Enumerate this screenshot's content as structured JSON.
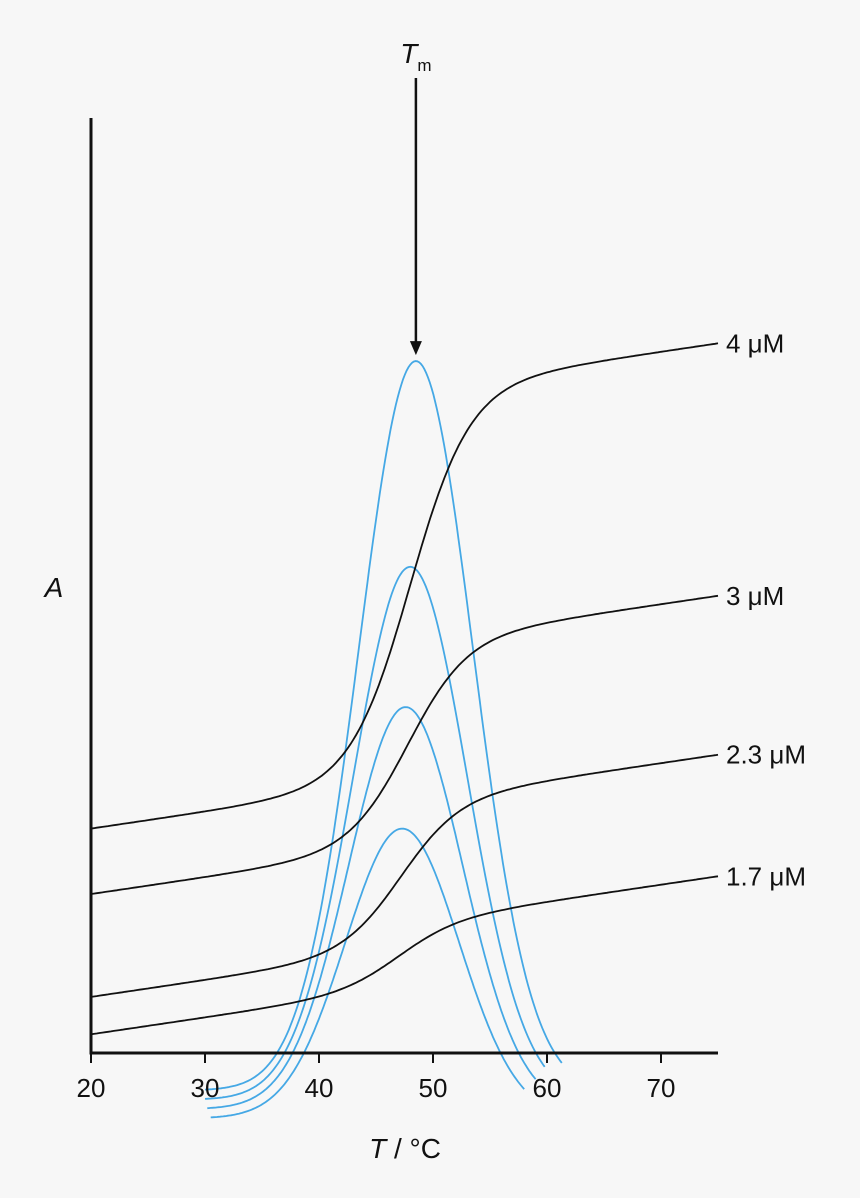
{
  "chart_data": {
    "type": "line",
    "title": "",
    "xlabel_var": "T",
    "xlabel_unit": " / °C",
    "ylabel": "A",
    "xlim": [
      20,
      75
    ],
    "xticks": [
      "20",
      "30",
      "40",
      "50",
      "60",
      "70"
    ],
    "peak_marker": {
      "symbol": "T",
      "subscript": "m",
      "x": 48.5
    },
    "colors": {
      "melting_curve": "#111111",
      "derivative_curve": "#45a8e5",
      "axis": "#111111"
    },
    "melting_curves": [
      {
        "name": "4 μM",
        "x_start": 20,
        "x_end": 75,
        "midpoint": 48.0,
        "y_low": 0.24,
        "y_high": 0.66
      },
      {
        "name": "3 μM",
        "x_start": 20,
        "x_end": 75,
        "midpoint": 47.8,
        "y_low": 0.17,
        "y_high": 0.39
      },
      {
        "name": "2.3 μM",
        "x_start": 20,
        "x_end": 75,
        "midpoint": 47.2,
        "y_low": 0.06,
        "y_high": 0.22
      },
      {
        "name": "1.7 μM",
        "x_start": 20,
        "x_end": 75,
        "midpoint": 47.0,
        "y_low": 0.02,
        "y_high": 0.09
      }
    ],
    "derivative_curves": [
      {
        "peak_x": 48.5,
        "x_start": 30.0,
        "x_end": 61.3,
        "y_base": -0.04,
        "y_peak": 0.74
      },
      {
        "peak_x": 48.0,
        "x_start": 30.0,
        "x_end": 59.8,
        "y_base": -0.05,
        "y_peak": 0.52
      },
      {
        "peak_x": 47.6,
        "x_start": 30.2,
        "x_end": 59.0,
        "y_base": -0.06,
        "y_peak": 0.37
      },
      {
        "peak_x": 47.3,
        "x_start": 30.5,
        "x_end": 58.0,
        "y_base": -0.07,
        "y_peak": 0.24
      }
    ]
  }
}
